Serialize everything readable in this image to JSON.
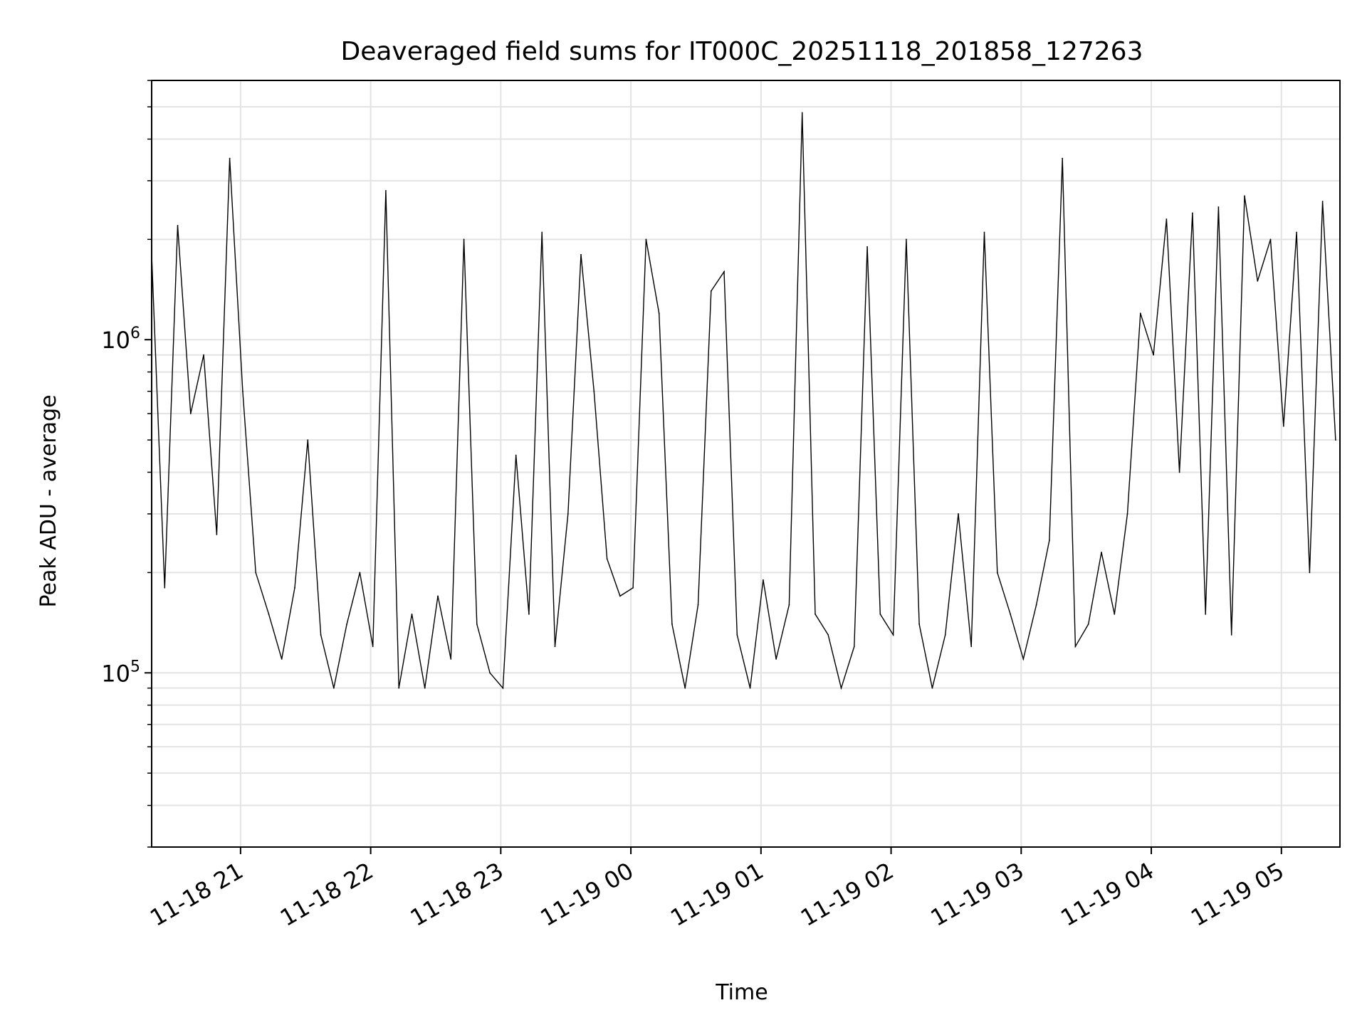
{
  "chart_data": {
    "type": "line",
    "title": "Deaveraged field sums for IT000C_20251118_201858_127263",
    "xlabel": "Time",
    "ylabel": "Peak ADU - average",
    "y_scale": "log",
    "ylim": [
      30000,
      6000000
    ],
    "xlim": [
      "2025-11-18 20:19",
      "2025-11-19 05:27"
    ],
    "grid": true,
    "line_color": "#000000",
    "x_tick_labels": [
      "11-18 21",
      "11-18 22",
      "11-18 23",
      "11-19 00",
      "11-19 01",
      "11-19 02",
      "11-19 03",
      "11-19 04",
      "11-19 05"
    ],
    "y_tick_labels": [
      {
        "value": 100000,
        "base": "10",
        "exp": "5"
      },
      {
        "value": 1000000,
        "base": "10",
        "exp": "6"
      }
    ],
    "series": [
      {
        "x": [
          "2025-11-18 20:19",
          "2025-11-18 20:25",
          "2025-11-18 20:31",
          "2025-11-18 20:37",
          "2025-11-18 20:43",
          "2025-11-18 20:49",
          "2025-11-18 20:55",
          "2025-11-18 21:01",
          "2025-11-18 21:07",
          "2025-11-18 21:13",
          "2025-11-18 21:19",
          "2025-11-18 21:25",
          "2025-11-18 21:31",
          "2025-11-18 21:37",
          "2025-11-18 21:43",
          "2025-11-18 21:49",
          "2025-11-18 21:55",
          "2025-11-18 22:01",
          "2025-11-18 22:07",
          "2025-11-18 22:13",
          "2025-11-18 22:19",
          "2025-11-18 22:25",
          "2025-11-18 22:31",
          "2025-11-18 22:37",
          "2025-11-18 22:43",
          "2025-11-18 22:49",
          "2025-11-18 22:55",
          "2025-11-18 23:01",
          "2025-11-18 23:07",
          "2025-11-18 23:13",
          "2025-11-18 23:19",
          "2025-11-18 23:25",
          "2025-11-18 23:31",
          "2025-11-18 23:37",
          "2025-11-18 23:43",
          "2025-11-18 23:49",
          "2025-11-18 23:55",
          "2025-11-19 00:01",
          "2025-11-19 00:07",
          "2025-11-19 00:13",
          "2025-11-19 00:19",
          "2025-11-19 00:25",
          "2025-11-19 00:31",
          "2025-11-19 00:37",
          "2025-11-19 00:43",
          "2025-11-19 00:49",
          "2025-11-19 00:55",
          "2025-11-19 01:01",
          "2025-11-19 01:07",
          "2025-11-19 01:13",
          "2025-11-19 01:19",
          "2025-11-19 01:25",
          "2025-11-19 01:31",
          "2025-11-19 01:37",
          "2025-11-19 01:43",
          "2025-11-19 01:49",
          "2025-11-19 01:55",
          "2025-11-19 02:01",
          "2025-11-19 02:07",
          "2025-11-19 02:13",
          "2025-11-19 02:19",
          "2025-11-19 02:25",
          "2025-11-19 02:31",
          "2025-11-19 02:37",
          "2025-11-19 02:43",
          "2025-11-19 02:49",
          "2025-11-19 02:55",
          "2025-11-19 03:01",
          "2025-11-19 03:07",
          "2025-11-19 03:13",
          "2025-11-19 03:19",
          "2025-11-19 03:25",
          "2025-11-19 03:31",
          "2025-11-19 03:37",
          "2025-11-19 03:43",
          "2025-11-19 03:49",
          "2025-11-19 03:55",
          "2025-11-19 04:01",
          "2025-11-19 04:07",
          "2025-11-19 04:13",
          "2025-11-19 04:19",
          "2025-11-19 04:25",
          "2025-11-19 04:31",
          "2025-11-19 04:37",
          "2025-11-19 04:43",
          "2025-11-19 04:49",
          "2025-11-19 04:55",
          "2025-11-19 05:01",
          "2025-11-19 05:07",
          "2025-11-19 05:13",
          "2025-11-19 05:19",
          "2025-11-19 05:25"
        ],
        "y": [
          1800000,
          180000,
          2200000,
          600000,
          900000,
          260000,
          3500000,
          700000,
          200000,
          150000,
          110000,
          180000,
          500000,
          130000,
          90000,
          140000,
          200000,
          120000,
          2800000,
          90000,
          150000,
          90000,
          170000,
          110000,
          2000000,
          140000,
          100000,
          90000,
          450000,
          150000,
          2100000,
          120000,
          300000,
          1800000,
          700000,
          220000,
          170000,
          180000,
          2000000,
          1200000,
          140000,
          90000,
          160000,
          1400000,
          1600000,
          130000,
          90000,
          190000,
          110000,
          160000,
          4800000,
          150000,
          130000,
          90000,
          120000,
          1900000,
          150000,
          130000,
          2000000,
          140000,
          90000,
          130000,
          300000,
          120000,
          2100000,
          200000,
          150000,
          110000,
          160000,
          250000,
          3500000,
          120000,
          140000,
          230000,
          150000,
          300000,
          1200000,
          900000,
          2300000,
          400000,
          2400000,
          150000,
          2500000,
          130000,
          2700000,
          1500000,
          2000000,
          550000,
          2100000,
          200000,
          2600000,
          500000
        ]
      }
    ]
  }
}
